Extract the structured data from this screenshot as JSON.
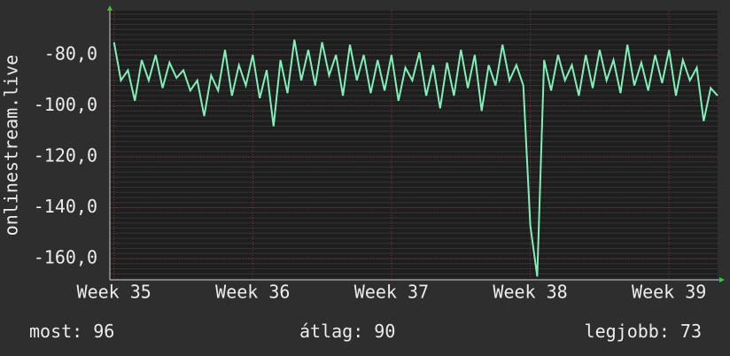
{
  "chart_data": {
    "type": "line",
    "y_label": "onlinestream.live",
    "x": [
      35.0,
      35.05,
      35.1,
      35.15,
      35.2,
      35.25,
      35.3,
      35.35,
      35.4,
      35.45,
      35.5,
      35.55,
      35.6,
      35.65,
      35.7,
      35.75,
      35.8,
      35.85,
      35.9,
      35.95,
      36.0,
      36.05,
      36.1,
      36.15,
      36.2,
      36.25,
      36.3,
      36.35,
      36.4,
      36.45,
      36.5,
      36.55,
      36.6,
      36.65,
      36.7,
      36.75,
      36.8,
      36.85,
      36.9,
      36.95,
      37.0,
      37.05,
      37.1,
      37.15,
      37.2,
      37.25,
      37.3,
      37.35,
      37.4,
      37.45,
      37.5,
      37.55,
      37.6,
      37.65,
      37.7,
      37.75,
      37.8,
      37.85,
      37.9,
      37.95,
      38.0,
      38.05,
      38.1,
      38.15,
      38.2,
      38.25,
      38.3,
      38.35,
      38.4,
      38.45,
      38.5,
      38.55,
      38.6,
      38.65,
      38.7,
      38.75,
      38.8,
      38.85,
      38.9,
      38.95,
      39.0,
      39.05,
      39.1,
      39.15,
      39.2,
      39.25,
      39.3,
      39.35
    ],
    "series": [
      {
        "color": "#80f0b8",
        "values": [
          -75,
          -90,
          -86,
          -98,
          -82,
          -90,
          -80,
          -93,
          -83,
          -89,
          -86,
          -94,
          -90,
          -104,
          -88,
          -94,
          -78,
          -96,
          -84,
          -92,
          -80,
          -97,
          -86,
          -108,
          -82,
          -95,
          -74,
          -90,
          -78,
          -92,
          -75,
          -88,
          -80,
          -96,
          -76,
          -90,
          -80,
          -95,
          -82,
          -94,
          -80,
          -98,
          -85,
          -90,
          -79,
          -96,
          -84,
          -101,
          -83,
          -96,
          -78,
          -93,
          -80,
          -102,
          -84,
          -92,
          -76,
          -90,
          -84,
          -92,
          -147,
          -167,
          -82,
          -94,
          -80,
          -90,
          -84,
          -96,
          -80,
          -93,
          -78,
          -90,
          -82,
          -95,
          -76,
          -92,
          -83,
          -94,
          -80,
          -91,
          -78,
          -96,
          -82,
          -90,
          -85,
          -106,
          -93,
          -96
        ]
      }
    ],
    "xlim": [
      34.97,
      39.35
    ],
    "xticks": [
      {
        "value": 35,
        "label": "Week 35"
      },
      {
        "value": 36,
        "label": "Week 36"
      },
      {
        "value": 37,
        "label": "Week 37"
      },
      {
        "value": 38,
        "label": "Week 38"
      },
      {
        "value": 39,
        "label": "Week 39"
      }
    ],
    "ylim": [
      -168.3,
      -62.6
    ],
    "yticks": [
      {
        "value": -80,
        "label": "-80,0"
      },
      {
        "value": -100,
        "label": "-100,0"
      },
      {
        "value": -120,
        "label": "-120,0"
      },
      {
        "value": -140,
        "label": "-140,0"
      },
      {
        "value": -160,
        "label": "-160,0"
      }
    ],
    "grid": true,
    "footer": [
      {
        "label": "most:",
        "value": 96
      },
      {
        "label": "átlag:",
        "value": 90
      },
      {
        "label": "legjobb:",
        "value": 73
      }
    ]
  }
}
